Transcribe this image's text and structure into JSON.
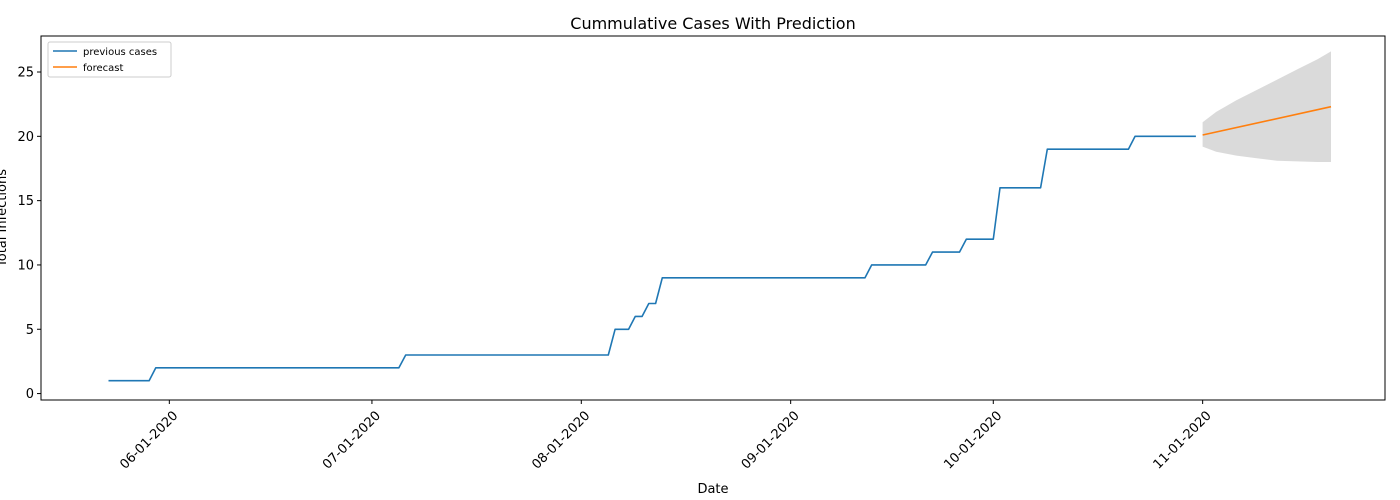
{
  "chart_data": {
    "type": "line",
    "title": "Cummulative Cases With Prediction",
    "xlabel": "Date",
    "ylabel": "Total Infections",
    "ylim": [
      -0.5,
      27.8
    ],
    "xlim": [
      "2020-05-13",
      "2020-11-28"
    ],
    "x_ticks": [
      "06-01-2020",
      "07-01-2020",
      "08-01-2020",
      "09-01-2020",
      "10-01-2020",
      "11-01-2020"
    ],
    "x_tick_dates": [
      "2020-06-01",
      "2020-07-01",
      "2020-08-01",
      "2020-09-01",
      "2020-10-01",
      "2020-11-01"
    ],
    "y_ticks": [
      0,
      5,
      10,
      15,
      20,
      25
    ],
    "legend_position": "upper-left",
    "series": [
      {
        "name": "previous cases",
        "color": "#1f77b4",
        "points": [
          [
            "2020-05-23",
            1
          ],
          [
            "2020-05-29",
            1
          ],
          [
            "2020-05-30",
            2
          ],
          [
            "2020-07-05",
            2
          ],
          [
            "2020-07-06",
            3
          ],
          [
            "2020-08-05",
            3
          ],
          [
            "2020-08-06",
            5
          ],
          [
            "2020-08-08",
            5
          ],
          [
            "2020-08-09",
            6
          ],
          [
            "2020-08-10",
            6
          ],
          [
            "2020-08-11",
            7
          ],
          [
            "2020-08-12",
            7
          ],
          [
            "2020-08-13",
            9
          ],
          [
            "2020-09-12",
            9
          ],
          [
            "2020-09-13",
            10
          ],
          [
            "2020-09-21",
            10
          ],
          [
            "2020-09-22",
            11
          ],
          [
            "2020-09-26",
            11
          ],
          [
            "2020-09-27",
            12
          ],
          [
            "2020-10-01",
            12
          ],
          [
            "2020-10-02",
            16
          ],
          [
            "2020-10-08",
            16
          ],
          [
            "2020-10-09",
            19
          ],
          [
            "2020-10-21",
            19
          ],
          [
            "2020-10-22",
            20
          ],
          [
            "2020-10-31",
            20
          ]
        ]
      },
      {
        "name": "forecast",
        "color": "#ff7f0e",
        "points": [
          [
            "2020-11-01",
            20.1
          ],
          [
            "2020-11-20",
            22.3
          ]
        ]
      }
    ],
    "confidence_band": {
      "color": "#d6d6d6",
      "x": [
        "2020-11-01",
        "2020-11-03",
        "2020-11-06",
        "2020-11-09",
        "2020-11-12",
        "2020-11-15",
        "2020-11-18",
        "2020-11-20"
      ],
      "upper": [
        21.1,
        21.9,
        22.8,
        23.6,
        24.4,
        25.2,
        26.0,
        26.6
      ],
      "lower": [
        19.2,
        18.8,
        18.5,
        18.3,
        18.1,
        18.05,
        18.0,
        18.0
      ]
    }
  }
}
